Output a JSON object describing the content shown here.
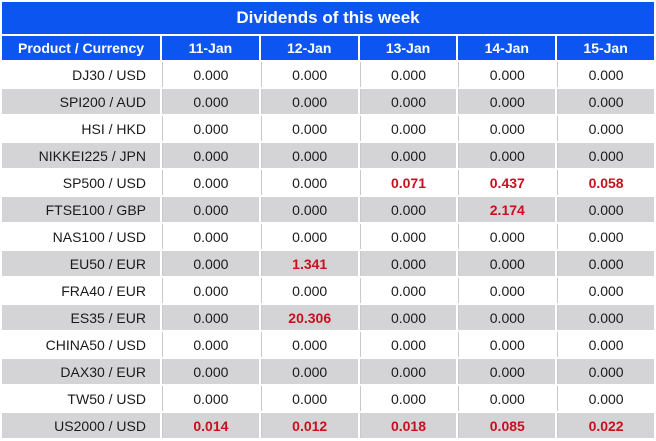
{
  "title": "Dividends of this week",
  "colors": {
    "header_blue": "#0d55f0",
    "row_gray": "#d4d4d6",
    "value_red": "#c8101e",
    "value_black": "#1a1a1a",
    "separator": "#c9c9cb",
    "background": "#ffffff"
  },
  "table": {
    "columns": [
      "Product / Currency",
      "11-Jan",
      "12-Jan",
      "13-Jan",
      "14-Jan",
      "15-Jan"
    ],
    "rows": [
      {
        "product": "DJ30 / USD",
        "values": [
          "0.000",
          "0.000",
          "0.000",
          "0.000",
          "0.000"
        ],
        "red": [
          false,
          false,
          false,
          false,
          false
        ]
      },
      {
        "product": "SPI200 / AUD",
        "values": [
          "0.000",
          "0.000",
          "0.000",
          "0.000",
          "0.000"
        ],
        "red": [
          false,
          false,
          false,
          false,
          false
        ]
      },
      {
        "product": "HSI / HKD",
        "values": [
          "0.000",
          "0.000",
          "0.000",
          "0.000",
          "0.000"
        ],
        "red": [
          false,
          false,
          false,
          false,
          false
        ]
      },
      {
        "product": "NIKKEI225 / JPN",
        "values": [
          "0.000",
          "0.000",
          "0.000",
          "0.000",
          "0.000"
        ],
        "red": [
          false,
          false,
          false,
          false,
          false
        ]
      },
      {
        "product": "SP500 / USD",
        "values": [
          "0.000",
          "0.000",
          "0.071",
          "0.437",
          "0.058"
        ],
        "red": [
          false,
          false,
          true,
          true,
          true
        ]
      },
      {
        "product": "FTSE100 / GBP",
        "values": [
          "0.000",
          "0.000",
          "0.000",
          "2.174",
          "0.000"
        ],
        "red": [
          false,
          false,
          false,
          true,
          false
        ]
      },
      {
        "product": "NAS100 / USD",
        "values": [
          "0.000",
          "0.000",
          "0.000",
          "0.000",
          "0.000"
        ],
        "red": [
          false,
          false,
          false,
          false,
          false
        ]
      },
      {
        "product": "EU50 / EUR",
        "values": [
          "0.000",
          "1.341",
          "0.000",
          "0.000",
          "0.000"
        ],
        "red": [
          false,
          true,
          false,
          false,
          false
        ]
      },
      {
        "product": "FRA40 / EUR",
        "values": [
          "0.000",
          "0.000",
          "0.000",
          "0.000",
          "0.000"
        ],
        "red": [
          false,
          false,
          false,
          false,
          false
        ]
      },
      {
        "product": "ES35 / EUR",
        "values": [
          "0.000",
          "20.306",
          "0.000",
          "0.000",
          "0.000"
        ],
        "red": [
          false,
          true,
          false,
          false,
          false
        ]
      },
      {
        "product": "CHINA50 / USD",
        "values": [
          "0.000",
          "0.000",
          "0.000",
          "0.000",
          "0.000"
        ],
        "red": [
          false,
          false,
          false,
          false,
          false
        ]
      },
      {
        "product": "DAX30 / EUR",
        "values": [
          "0.000",
          "0.000",
          "0.000",
          "0.000",
          "0.000"
        ],
        "red": [
          false,
          false,
          false,
          false,
          false
        ]
      },
      {
        "product": "TW50 / USD",
        "values": [
          "0.000",
          "0.000",
          "0.000",
          "0.000",
          "0.000"
        ],
        "red": [
          false,
          false,
          false,
          false,
          false
        ]
      },
      {
        "product": "US2000 / USD",
        "values": [
          "0.014",
          "0.012",
          "0.018",
          "0.085",
          "0.022"
        ],
        "red": [
          true,
          true,
          true,
          true,
          true
        ]
      }
    ]
  }
}
